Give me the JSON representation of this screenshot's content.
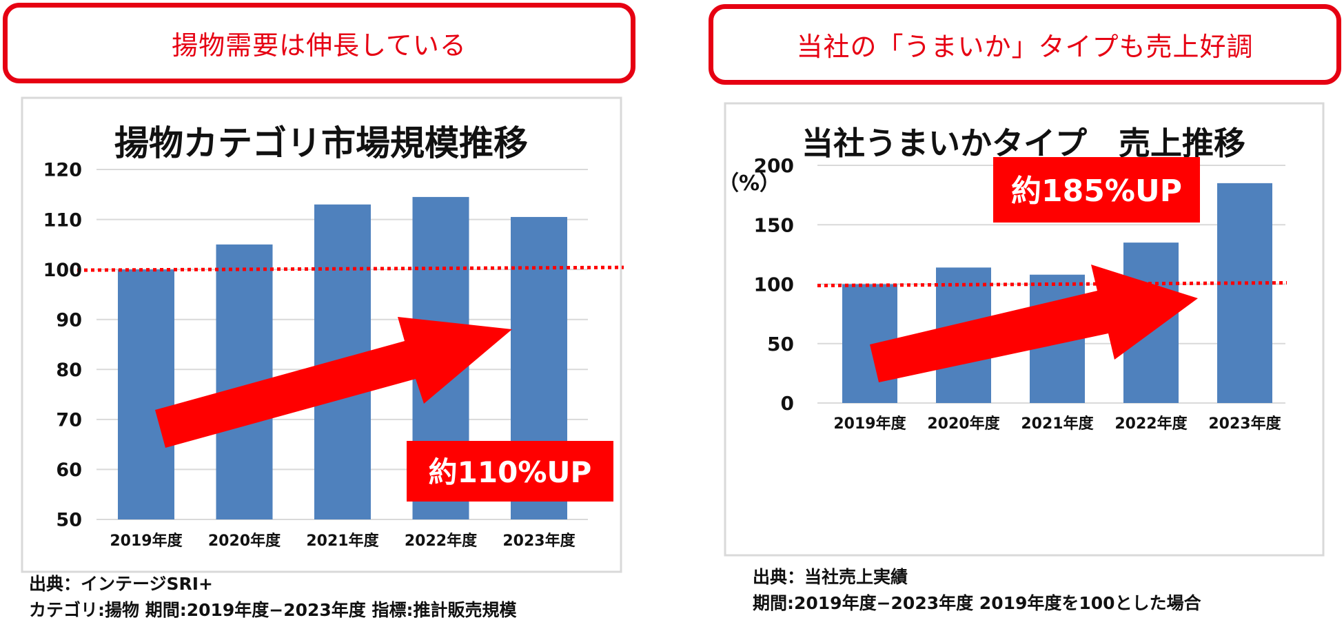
{
  "left": {
    "banner": "揚物需要は伸長している",
    "badge": "約110%UP",
    "source_lines": [
      "出典：インテージSRI+",
      "カテゴリ:揚物 期間:2019年度−2023年度 指標:推計販売規模"
    ],
    "chart_data": {
      "type": "bar",
      "title": "揚物カテゴリ市場規模推移",
      "categories": [
        "2019年度",
        "2020年度",
        "2021年度",
        "2022年度",
        "2023年度"
      ],
      "values": [
        100,
        105,
        113,
        114.5,
        110.5
      ],
      "ylim": [
        50,
        120
      ],
      "yticks": [
        50,
        60,
        70,
        80,
        90,
        100,
        110,
        120
      ],
      "ylabel": "",
      "reference_line": 100,
      "bar_color": "#4f81bd",
      "accent_color": "#ff0000",
      "grid": true
    }
  },
  "right": {
    "banner": "当社の「うまいか」タイプも売上好調",
    "badge": "約185%UP",
    "source_lines": [
      "出典：当社売上実績",
      "期間:2019年度−2023年度 2019年度を100とした場合"
    ],
    "chart_data": {
      "type": "bar",
      "title": "当社うまいかタイプ　売上推移",
      "categories": [
        "2019年度",
        "2020年度",
        "2021年度",
        "2022年度",
        "2023年度"
      ],
      "values": [
        100,
        114,
        108,
        135,
        185
      ],
      "ylim": [
        0,
        200
      ],
      "yticks": [
        0,
        50,
        100,
        150,
        200
      ],
      "ylabel": "（%）",
      "reference_line": 100,
      "bar_color": "#4f81bd",
      "accent_color": "#ff0000",
      "grid": true
    }
  }
}
